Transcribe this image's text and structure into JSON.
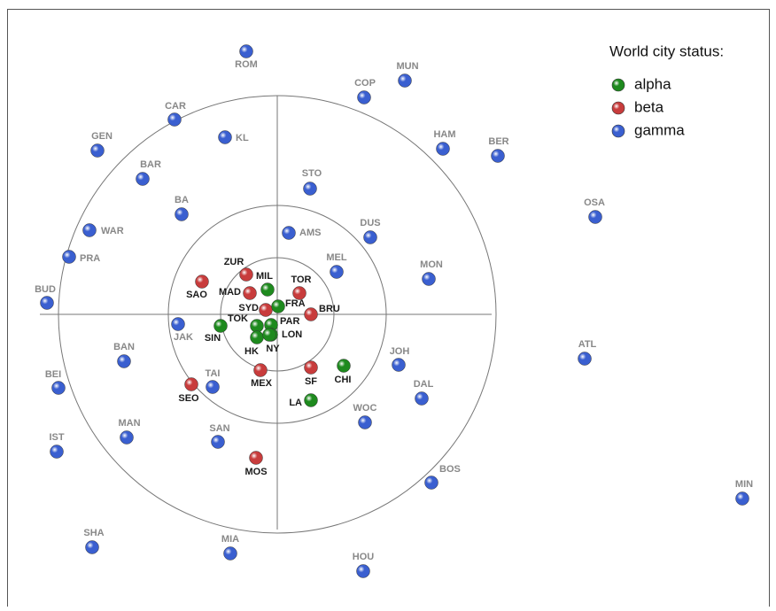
{
  "legend": {
    "title": "World city status:",
    "items": [
      {
        "label": "alpha",
        "color": "#1e8a1e"
      },
      {
        "label": "beta",
        "color": "#c83c3c"
      },
      {
        "label": "gamma",
        "color": "#3a5fd0"
      }
    ]
  },
  "nodes": [
    {
      "label": "ROM",
      "group": 2
    },
    {
      "label": "MUN",
      "group": 2
    },
    {
      "label": "COP",
      "group": 2
    },
    {
      "label": "CAR",
      "group": 2
    },
    {
      "label": "KL",
      "group": 2
    },
    {
      "label": "HAM",
      "group": 2
    },
    {
      "label": "BER",
      "group": 2
    },
    {
      "label": "GEN",
      "group": 2
    },
    {
      "label": "BAR",
      "group": 2
    },
    {
      "label": "STO",
      "group": 2
    },
    {
      "label": "BA",
      "group": 2
    },
    {
      "label": "OSA",
      "group": 2
    },
    {
      "label": "DUS",
      "group": 2
    },
    {
      "label": "WAR",
      "group": 2
    },
    {
      "label": "AMS",
      "group": 2
    },
    {
      "label": "PRA",
      "group": 2
    },
    {
      "label": "MEL",
      "group": 2
    },
    {
      "label": "MON",
      "group": 2
    },
    {
      "label": "BUD",
      "group": 2
    },
    {
      "label": "JAK",
      "group": 2
    },
    {
      "label": "BAN",
      "group": 2
    },
    {
      "label": "ATL",
      "group": 2
    },
    {
      "label": "JOH",
      "group": 2
    },
    {
      "label": "BEI",
      "group": 2
    },
    {
      "label": "TAI",
      "group": 2
    },
    {
      "label": "DAL",
      "group": 2
    },
    {
      "label": "WOC",
      "group": 2
    },
    {
      "label": "MAN",
      "group": 2
    },
    {
      "label": "SAN",
      "group": 2
    },
    {
      "label": "IST",
      "group": 2
    },
    {
      "label": "BOS",
      "group": 2
    },
    {
      "label": "MIN",
      "group": 2
    },
    {
      "label": "SHA",
      "group": 2
    },
    {
      "label": "MIA",
      "group": 2
    },
    {
      "label": "HOU",
      "group": 2
    },
    {
      "label": "ZUR",
      "group": 1
    },
    {
      "label": "SAO",
      "group": 1
    },
    {
      "label": "MAD",
      "group": 1
    },
    {
      "label": "TOR",
      "group": 1
    },
    {
      "label": "SYD",
      "group": 1
    },
    {
      "label": "BRU",
      "group": 1
    },
    {
      "label": "MEX",
      "group": 1
    },
    {
      "label": "SF",
      "group": 1
    },
    {
      "label": "SEO",
      "group": 1
    },
    {
      "label": "MOS",
      "group": 1
    },
    {
      "label": "MIL",
      "group": 0
    },
    {
      "label": "FRA",
      "group": 0
    },
    {
      "label": "PAR",
      "group": 0
    },
    {
      "label": "TOK",
      "group": 0
    },
    {
      "label": "SIN",
      "group": 0
    },
    {
      "label": "LON",
      "group": 0
    },
    {
      "label": "HK",
      "group": 0
    },
    {
      "label": "NY",
      "group": 0
    },
    {
      "label": "CHI",
      "group": 0
    },
    {
      "label": "LA",
      "group": 0
    }
  ]
}
